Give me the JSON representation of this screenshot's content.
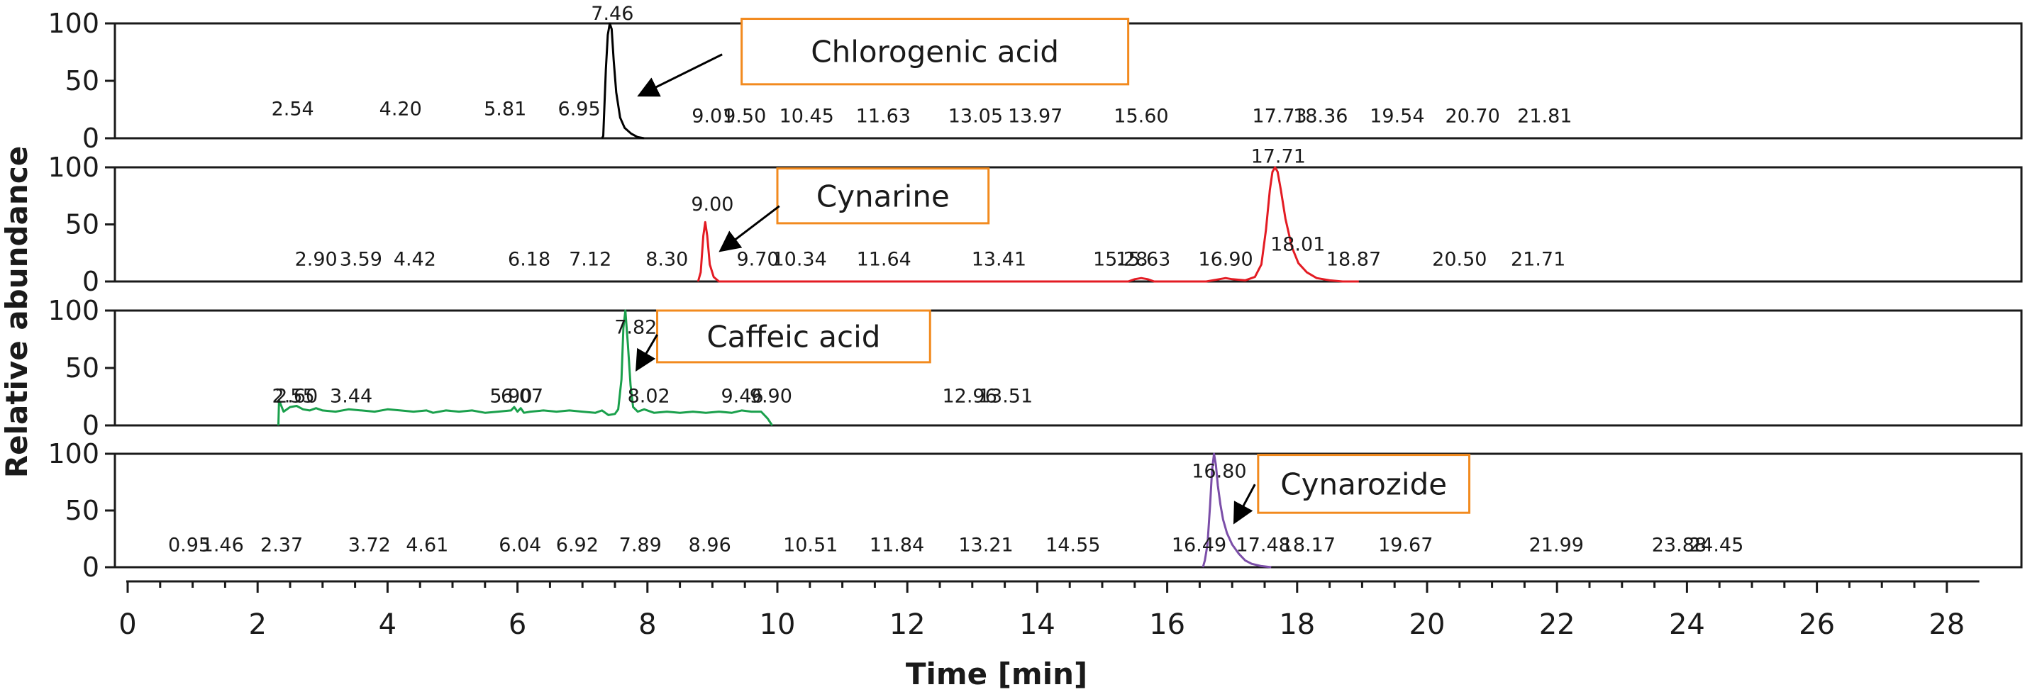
{
  "chart_data": {
    "type": "line",
    "xlabel": "Time [min]",
    "ylabel": "Relative abundance",
    "xlim": [
      0,
      28.5
    ],
    "ylim": [
      0,
      100
    ],
    "x_ticks": [
      "0",
      "2",
      "4",
      "6",
      "8",
      "10",
      "12",
      "14",
      "16",
      "18",
      "20",
      "22",
      "24",
      "26",
      "28"
    ],
    "y_ticks": [
      "0",
      "50",
      "100"
    ],
    "grid": false,
    "panels": [
      {
        "name": "Chlorogenic acid",
        "color": "#000000",
        "peak_labels": [
          {
            "x": 2.54,
            "y": 20,
            "text": "2.54"
          },
          {
            "x": 4.2,
            "y": 20,
            "text": "4.20"
          },
          {
            "x": 5.81,
            "y": 20,
            "text": "5.81"
          },
          {
            "x": 6.95,
            "y": 20,
            "text": "6.95"
          },
          {
            "x": 7.46,
            "y": 103,
            "text": "7.46"
          },
          {
            "x": 9.01,
            "y": 14,
            "text": "9.01"
          },
          {
            "x": 9.5,
            "y": 14,
            "text": "9.50"
          },
          {
            "x": 10.45,
            "y": 14,
            "text": "10.45"
          },
          {
            "x": 11.63,
            "y": 14,
            "text": "11.63"
          },
          {
            "x": 13.05,
            "y": 14,
            "text": "13.05"
          },
          {
            "x": 13.97,
            "y": 14,
            "text": "13.97"
          },
          {
            "x": 15.6,
            "y": 14,
            "text": "15.60"
          },
          {
            "x": 17.73,
            "y": 14,
            "text": "17.73"
          },
          {
            "x": 18.36,
            "y": 14,
            "text": "18.36"
          },
          {
            "x": 19.54,
            "y": 14,
            "text": "19.54"
          },
          {
            "x": 20.7,
            "y": 14,
            "text": "20.70"
          },
          {
            "x": 21.81,
            "y": 14,
            "text": "21.81"
          }
        ],
        "trace": [
          [
            7.3,
            0
          ],
          [
            7.32,
            2
          ],
          [
            7.36,
            60
          ],
          [
            7.39,
            90
          ],
          [
            7.42,
            100
          ],
          [
            7.45,
            95
          ],
          [
            7.48,
            68
          ],
          [
            7.52,
            40
          ],
          [
            7.58,
            18
          ],
          [
            7.65,
            9
          ],
          [
            7.75,
            4
          ],
          [
            7.85,
            1
          ],
          [
            7.95,
            0
          ]
        ],
        "callout": {
          "text": "Chlorogenic acid",
          "x0": 9.45,
          "x1": 15.4,
          "y0": 104,
          "y1": 47
        },
        "arrow": {
          "from": [
            9.15,
            73
          ],
          "to": [
            7.9,
            38
          ]
        }
      },
      {
        "name": "Cynarine",
        "color": "#e31b23",
        "peak_labels": [
          {
            "x": 2.9,
            "y": 14,
            "text": "2.90"
          },
          {
            "x": 3.59,
            "y": 14,
            "text": "3.59"
          },
          {
            "x": 4.42,
            "y": 14,
            "text": "4.42"
          },
          {
            "x": 6.18,
            "y": 14,
            "text": "6.18"
          },
          {
            "x": 7.12,
            "y": 14,
            "text": "7.12"
          },
          {
            "x": 8.3,
            "y": 14,
            "text": "8.30"
          },
          {
            "x": 9.0,
            "y": 62,
            "text": "9.00"
          },
          {
            "x": 9.7,
            "y": 14,
            "text": "9.70"
          },
          {
            "x": 10.34,
            "y": 14,
            "text": "10.34"
          },
          {
            "x": 11.64,
            "y": 14,
            "text": "11.64"
          },
          {
            "x": 13.41,
            "y": 14,
            "text": "13.41"
          },
          {
            "x": 15.28,
            "y": 14,
            "text": "15.28"
          },
          {
            "x": 15.63,
            "y": 14,
            "text": "15.63"
          },
          {
            "x": 16.9,
            "y": 14,
            "text": "16.90"
          },
          {
            "x": 17.71,
            "y": 104,
            "text": "17.71"
          },
          {
            "x": 18.01,
            "y": 27,
            "text": "18.01"
          },
          {
            "x": 18.87,
            "y": 14,
            "text": "18.87"
          },
          {
            "x": 20.5,
            "y": 14,
            "text": "20.50"
          },
          {
            "x": 21.71,
            "y": 14,
            "text": "21.71"
          }
        ],
        "trace": [
          [
            8.78,
            0
          ],
          [
            8.82,
            8
          ],
          [
            8.86,
            40
          ],
          [
            8.89,
            52
          ],
          [
            8.92,
            40
          ],
          [
            8.96,
            15
          ],
          [
            9.02,
            4
          ],
          [
            9.1,
            0
          ],
          [
            15.4,
            0
          ],
          [
            15.5,
            2
          ],
          [
            15.6,
            3
          ],
          [
            15.7,
            2
          ],
          [
            15.8,
            0
          ],
          [
            16.6,
            0
          ],
          [
            16.8,
            2
          ],
          [
            16.9,
            3
          ],
          [
            17.0,
            2
          ],
          [
            17.2,
            1
          ],
          [
            17.35,
            4
          ],
          [
            17.45,
            15
          ],
          [
            17.52,
            45
          ],
          [
            17.58,
            80
          ],
          [
            17.62,
            96
          ],
          [
            17.66,
            100
          ],
          [
            17.7,
            96
          ],
          [
            17.75,
            80
          ],
          [
            17.82,
            55
          ],
          [
            17.92,
            30
          ],
          [
            18.02,
            16
          ],
          [
            18.15,
            8
          ],
          [
            18.3,
            3
          ],
          [
            18.5,
            1
          ],
          [
            18.7,
            0
          ],
          [
            18.95,
            0
          ]
        ],
        "callout": {
          "text": "Cynarine",
          "x0": 10.0,
          "x1": 13.25,
          "y0": 99,
          "y1": 51
        },
        "arrow": {
          "from": [
            10.03,
            66
          ],
          "to": [
            9.15,
            28
          ]
        }
      },
      {
        "name": "Caffeic acid",
        "color": "#1aa04c",
        "peak_labels": [
          {
            "x": 2.55,
            "y": 20,
            "text": "2.55"
          },
          {
            "x": 2.6,
            "y": 20,
            "text": "2.60"
          },
          {
            "x": 3.44,
            "y": 20,
            "text": "3.44"
          },
          {
            "x": 5.9,
            "y": 20,
            "text": "5.90"
          },
          {
            "x": 6.07,
            "y": 20,
            "text": "6.07"
          },
          {
            "x": 7.82,
            "y": 80,
            "text": "7.82"
          },
          {
            "x": 8.02,
            "y": 20,
            "text": "8.02"
          },
          {
            "x": 9.46,
            "y": 20,
            "text": "9.46"
          },
          {
            "x": 9.9,
            "y": 20,
            "text": "9.90"
          },
          {
            "x": 12.96,
            "y": 20,
            "text": "12.96"
          },
          {
            "x": 13.51,
            "y": 20,
            "text": "13.51"
          }
        ],
        "trace": [
          [
            2.32,
            0
          ],
          [
            2.33,
            22
          ],
          [
            2.4,
            12
          ],
          [
            2.5,
            16
          ],
          [
            2.6,
            17
          ],
          [
            2.7,
            14
          ],
          [
            2.8,
            13
          ],
          [
            2.9,
            15
          ],
          [
            3.0,
            13
          ],
          [
            3.2,
            12
          ],
          [
            3.4,
            14
          ],
          [
            3.6,
            13
          ],
          [
            3.8,
            12
          ],
          [
            4.0,
            14
          ],
          [
            4.2,
            13
          ],
          [
            4.4,
            12
          ],
          [
            4.6,
            13
          ],
          [
            4.7,
            11
          ],
          [
            4.9,
            13
          ],
          [
            5.1,
            12
          ],
          [
            5.3,
            13
          ],
          [
            5.5,
            11
          ],
          [
            5.7,
            12
          ],
          [
            5.9,
            13
          ],
          [
            5.95,
            16
          ],
          [
            6.0,
            12
          ],
          [
            6.05,
            15
          ],
          [
            6.1,
            11
          ],
          [
            6.2,
            12
          ],
          [
            6.4,
            13
          ],
          [
            6.6,
            12
          ],
          [
            6.8,
            13
          ],
          [
            7.0,
            12
          ],
          [
            7.2,
            11
          ],
          [
            7.3,
            13
          ],
          [
            7.4,
            9
          ],
          [
            7.5,
            10
          ],
          [
            7.55,
            14
          ],
          [
            7.6,
            40
          ],
          [
            7.63,
            85
          ],
          [
            7.66,
            100
          ],
          [
            7.7,
            70
          ],
          [
            7.74,
            35
          ],
          [
            7.78,
            16
          ],
          [
            7.85,
            12
          ],
          [
            7.95,
            14
          ],
          [
            8.1,
            11
          ],
          [
            8.3,
            12
          ],
          [
            8.5,
            11
          ],
          [
            8.7,
            12
          ],
          [
            8.9,
            11
          ],
          [
            9.1,
            12
          ],
          [
            9.3,
            11
          ],
          [
            9.45,
            13
          ],
          [
            9.6,
            12
          ],
          [
            9.75,
            12
          ],
          [
            9.85,
            6
          ],
          [
            9.92,
            0
          ]
        ],
        "callout": {
          "text": "Caffeic acid",
          "x0": 8.15,
          "x1": 12.35,
          "y0": 100,
          "y1": 55
        },
        "arrow": {
          "from": [
            8.15,
            79
          ],
          "to": [
            7.85,
            50
          ]
        }
      },
      {
        "name": "Cynarozide",
        "color": "#7b4ea8",
        "peak_labels": [
          {
            "x": 0.95,
            "y": 14,
            "text": "0.95"
          },
          {
            "x": 1.46,
            "y": 14,
            "text": "1.46"
          },
          {
            "x": 2.37,
            "y": 14,
            "text": "2.37"
          },
          {
            "x": 3.72,
            "y": 14,
            "text": "3.72"
          },
          {
            "x": 4.61,
            "y": 14,
            "text": "4.61"
          },
          {
            "x": 6.04,
            "y": 14,
            "text": "6.04"
          },
          {
            "x": 6.92,
            "y": 14,
            "text": "6.92"
          },
          {
            "x": 7.89,
            "y": 14,
            "text": "7.89"
          },
          {
            "x": 8.96,
            "y": 14,
            "text": "8.96"
          },
          {
            "x": 10.51,
            "y": 14,
            "text": "10.51"
          },
          {
            "x": 11.84,
            "y": 14,
            "text": "11.84"
          },
          {
            "x": 13.21,
            "y": 14,
            "text": "13.21"
          },
          {
            "x": 14.55,
            "y": 14,
            "text": "14.55"
          },
          {
            "x": 16.49,
            "y": 14,
            "text": "16.49"
          },
          {
            "x": 16.8,
            "y": 79,
            "text": "16.80"
          },
          {
            "x": 17.48,
            "y": 14,
            "text": "17.48"
          },
          {
            "x": 18.17,
            "y": 14,
            "text": "18.17"
          },
          {
            "x": 19.67,
            "y": 14,
            "text": "19.67"
          },
          {
            "x": 21.99,
            "y": 14,
            "text": "21.99"
          },
          {
            "x": 23.88,
            "y": 14,
            "text": "23.88"
          },
          {
            "x": 24.45,
            "y": 14,
            "text": "24.45"
          }
        ],
        "trace": [
          [
            16.55,
            0
          ],
          [
            16.58,
            6
          ],
          [
            16.62,
            20
          ],
          [
            16.66,
            55
          ],
          [
            16.69,
            85
          ],
          [
            16.72,
            100
          ],
          [
            16.75,
            90
          ],
          [
            16.78,
            72
          ],
          [
            16.82,
            55
          ],
          [
            16.86,
            42
          ],
          [
            16.92,
            30
          ],
          [
            17.0,
            20
          ],
          [
            17.1,
            12
          ],
          [
            17.2,
            6
          ],
          [
            17.3,
            3
          ],
          [
            17.45,
            1
          ],
          [
            17.6,
            0
          ]
        ],
        "callout": {
          "text": "Cynarozide",
          "x0": 17.4,
          "x1": 20.65,
          "y0": 99,
          "y1": 48
        },
        "arrow": {
          "from": [
            17.35,
            73
          ],
          "to": [
            17.05,
            41
          ]
        }
      }
    ]
  }
}
